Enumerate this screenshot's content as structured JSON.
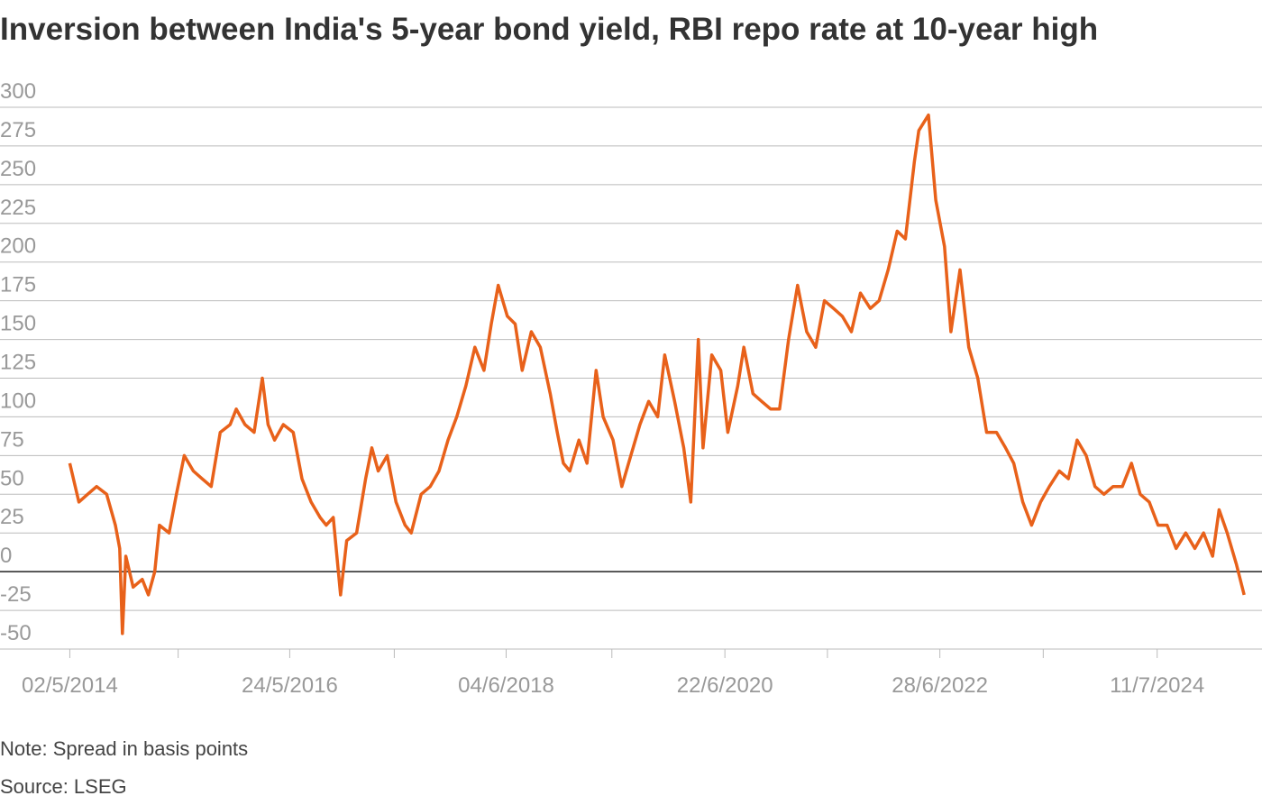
{
  "chart_data": {
    "type": "line",
    "title": "Inversion between India's 5-year bond yield, RBI repo rate at 10-year high",
    "note": "Note: Spread in basis points",
    "source": "Source: LSEG",
    "color": "#e8611a",
    "grid": true,
    "x": [
      "2014-05-02",
      "2014-06-02",
      "2014-07-02",
      "2014-08-02",
      "2014-09-05",
      "2014-10-05",
      "2014-10-20",
      "2014-10-29",
      "2014-11-10",
      "2014-12-05",
      "2015-01-05",
      "2015-01-26",
      "2015-02-17",
      "2015-03-05",
      "2015-04-07",
      "2015-05-02",
      "2015-05-29",
      "2015-06-29",
      "2015-07-29",
      "2015-08-29",
      "2015-09-29",
      "2015-11-02",
      "2015-11-23",
      "2015-12-23",
      "2016-01-23",
      "2016-02-20",
      "2016-03-11",
      "2016-04-02",
      "2016-05-02",
      "2016-06-05",
      "2016-07-05",
      "2016-08-05",
      "2016-09-05",
      "2016-09-26",
      "2016-10-20",
      "2016-11-14",
      "2016-12-05",
      "2017-01-08",
      "2017-02-08",
      "2017-03-01",
      "2017-03-23",
      "2017-04-23",
      "2017-05-23",
      "2017-06-23",
      "2017-07-14",
      "2017-08-17",
      "2017-09-17",
      "2017-10-17",
      "2017-11-17",
      "2017-12-17",
      "2018-01-17",
      "2018-02-17",
      "2018-03-20",
      "2018-04-14",
      "2018-05-08",
      "2018-06-08",
      "2018-07-05",
      "2018-07-29",
      "2018-08-29",
      "2018-09-29",
      "2018-11-02",
      "2018-11-26",
      "2018-12-17",
      "2019-01-08",
      "2019-02-08",
      "2019-03-08",
      "2019-04-08",
      "2019-05-02",
      "2019-06-05",
      "2019-07-05",
      "2019-08-05",
      "2019-09-05",
      "2019-10-05",
      "2019-11-05",
      "2019-11-29",
      "2020-01-02",
      "2020-02-02",
      "2020-02-26",
      "2020-03-23",
      "2020-04-08",
      "2020-05-08",
      "2020-06-08",
      "2020-07-02",
      "2020-08-05",
      "2020-08-26",
      "2020-09-26",
      "2020-10-26",
      "2020-11-26",
      "2020-12-26",
      "2021-01-26",
      "2021-02-26",
      "2021-03-29",
      "2021-04-29",
      "2021-05-29",
      "2021-06-29",
      "2021-07-29",
      "2021-08-29",
      "2021-09-29",
      "2021-11-02",
      "2021-12-02",
      "2022-01-02",
      "2022-02-02",
      "2022-03-02",
      "2022-04-02",
      "2022-04-17",
      "2022-05-20",
      "2022-06-14",
      "2022-07-14",
      "2022-08-05",
      "2022-09-05",
      "2022-10-05",
      "2022-11-05",
      "2022-12-05",
      "2023-01-08",
      "2023-02-08",
      "2023-03-08",
      "2023-04-08",
      "2023-05-08",
      "2023-06-08",
      "2023-07-08",
      "2023-08-11",
      "2023-09-11",
      "2023-10-11",
      "2023-11-11",
      "2023-12-11",
      "2024-01-11",
      "2024-02-11",
      "2024-03-14",
      "2024-04-14",
      "2024-05-14",
      "2024-06-14",
      "2024-07-14",
      "2024-08-14",
      "2024-09-14",
      "2024-10-17",
      "2024-11-17",
      "2024-12-17",
      "2025-01-17",
      "2025-02-08",
      "2025-03-08",
      "2025-04-08",
      "2025-05-05"
    ],
    "values": [
      70,
      45,
      50,
      55,
      50,
      30,
      15,
      -40,
      10,
      -10,
      -5,
      -15,
      0,
      30,
      25,
      50,
      75,
      65,
      60,
      55,
      90,
      95,
      105,
      95,
      90,
      125,
      95,
      85,
      95,
      90,
      60,
      45,
      35,
      30,
      35,
      -15,
      20,
      25,
      60,
      80,
      65,
      75,
      45,
      30,
      25,
      50,
      55,
      65,
      85,
      100,
      120,
      145,
      130,
      160,
      185,
      165,
      160,
      130,
      155,
      145,
      115,
      90,
      70,
      65,
      85,
      70,
      130,
      100,
      85,
      55,
      75,
      95,
      110,
      100,
      140,
      110,
      80,
      45,
      150,
      80,
      140,
      130,
      90,
      120,
      145,
      115,
      110,
      105,
      105,
      150,
      185,
      155,
      145,
      175,
      170,
      165,
      155,
      180,
      170,
      175,
      195,
      220,
      215,
      265,
      285,
      295,
      240,
      210,
      155,
      195,
      145,
      125,
      90,
      90,
      80,
      70,
      45,
      30,
      45,
      55,
      65,
      60,
      85,
      75,
      55,
      50,
      55,
      55,
      70,
      50,
      45,
      30,
      30,
      15,
      25,
      15,
      25,
      10,
      40,
      25,
      5,
      -15
    ],
    "xlim": [
      "2013-09-05",
      "2025-07-05"
    ],
    "xticks": [
      {
        "value": "2014-05-02",
        "label": "02/5/2014"
      },
      {
        "value": "2015-05-08",
        "label": null
      },
      {
        "value": "2016-05-24",
        "label": "24/5/2016"
      },
      {
        "value": "2017-05-17",
        "label": null
      },
      {
        "value": "2018-06-04",
        "label": "04/6/2018"
      },
      {
        "value": "2019-06-01",
        "label": null
      },
      {
        "value": "2020-06-22",
        "label": "22/6/2020"
      },
      {
        "value": "2021-06-08",
        "label": null
      },
      {
        "value": "2022-06-28",
        "label": "28/6/2022"
      },
      {
        "value": "2023-06-17",
        "label": null
      },
      {
        "value": "2024-07-11",
        "label": "11/7/2024"
      }
    ],
    "ylim": [
      -50,
      300
    ],
    "yticks": [
      -50,
      -25,
      0,
      25,
      50,
      75,
      100,
      125,
      150,
      175,
      200,
      225,
      250,
      275,
      300
    ]
  }
}
